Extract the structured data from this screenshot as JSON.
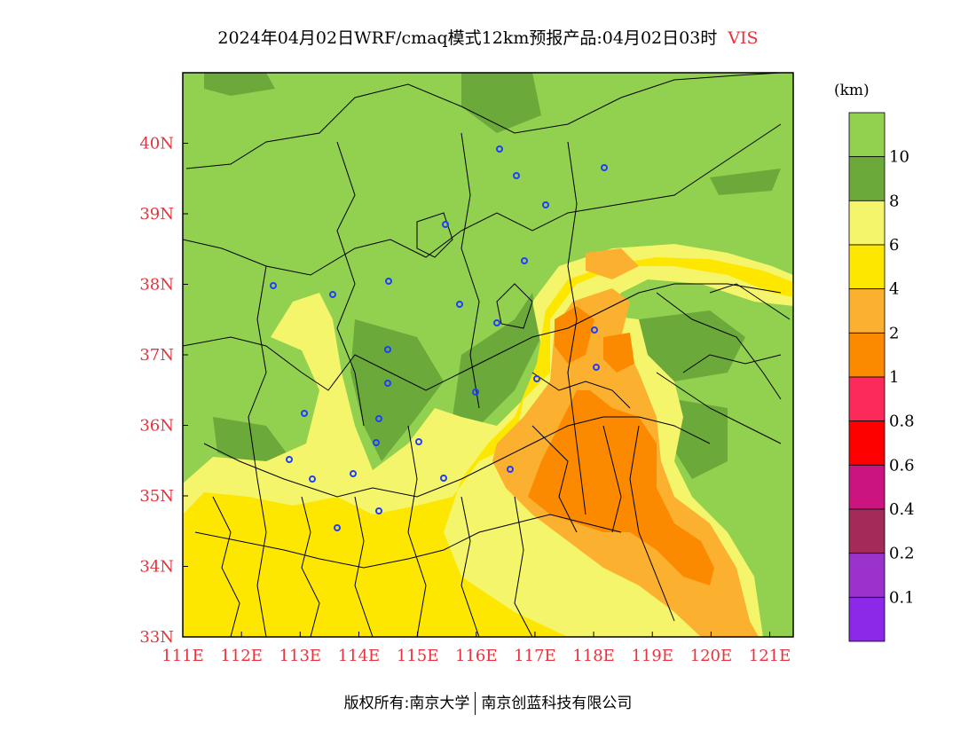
{
  "title": {
    "text": "2024年04月02日WRF/cmaq模式12km预报产品:04月02日03时",
    "variable": "VIS"
  },
  "colorbar": {
    "unit": "(km)",
    "bins": [
      {
        "color": "#92d050"
      },
      {
        "color": "#6aa93a"
      },
      {
        "color": "#f4f56a"
      },
      {
        "color": "#fde700"
      },
      {
        "color": "#fbb030"
      },
      {
        "color": "#fc8a00"
      },
      {
        "color": "#fc2a5a"
      },
      {
        "color": "#fd0000"
      },
      {
        "color": "#cc1480"
      },
      {
        "color": "#a42a5a"
      },
      {
        "color": "#9b32cc"
      },
      {
        "color": "#8c28e8"
      }
    ],
    "labels": [
      "10",
      "8",
      "6",
      "4",
      "2",
      "1",
      "0.8",
      "0.6",
      "0.4",
      "0.2",
      "0.1"
    ]
  },
  "axes": {
    "x_ticks": [
      "111E",
      "112E",
      "113E",
      "114E",
      "115E",
      "116E",
      "117E",
      "118E",
      "119E",
      "120E",
      "121E"
    ],
    "y_ticks": [
      "40N",
      "39N",
      "38N",
      "37N",
      "36N",
      "35N",
      "34N",
      "33N"
    ],
    "xlim": [
      111,
      121.4
    ],
    "ylim": [
      33,
      41
    ],
    "tick_color": "#e8323c"
  },
  "footer": {
    "left": "版权所有:南京大学",
    "right": "南京创蓝科技有限公司"
  },
  "colors": {
    "background_green": "#92d050",
    "dark_green": "#6aa93a",
    "marker_blue": "#1f3fff"
  }
}
